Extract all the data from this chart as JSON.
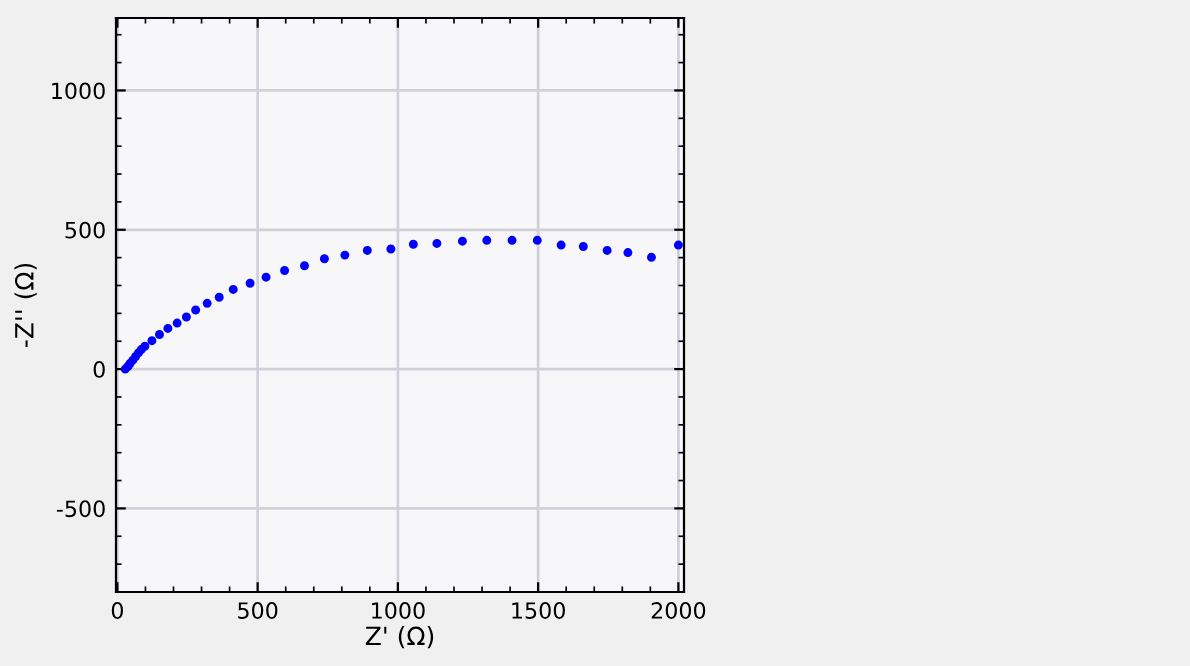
{
  "chart_data": {
    "type": "scatter",
    "xlabel": "Z' (Ω)",
    "ylabel": "-Z'' (Ω)",
    "x": [
      28,
      38,
      45,
      55,
      65,
      75,
      85,
      98,
      123,
      150,
      180,
      213,
      246,
      279,
      320,
      363,
      413,
      473,
      530,
      596,
      667,
      738,
      811,
      891,
      975,
      1055,
      1139,
      1230,
      1317,
      1407,
      1497,
      1582,
      1661,
      1746,
      1820,
      1904,
      2000
    ],
    "series": [
      {
        "color": "#0000ff",
        "values": [
          0,
          10,
          20,
          32,
          45,
          58,
          70,
          82,
          102,
          124,
          146,
          165,
          187,
          212,
          236,
          258,
          286,
          308,
          330,
          354,
          371,
          396,
          409,
          426,
          431,
          448,
          451,
          459,
          462,
          462,
          462,
          445,
          440,
          426,
          418,
          401,
          445
        ]
      }
    ],
    "xlim": [
      -5,
      2020
    ],
    "ylim": [
      -800,
      1260
    ],
    "xticks": [
      0,
      500,
      1000,
      1500,
      2000
    ],
    "yticks": [
      -500,
      0,
      500,
      1000
    ],
    "grid": true,
    "marker": "circle"
  }
}
